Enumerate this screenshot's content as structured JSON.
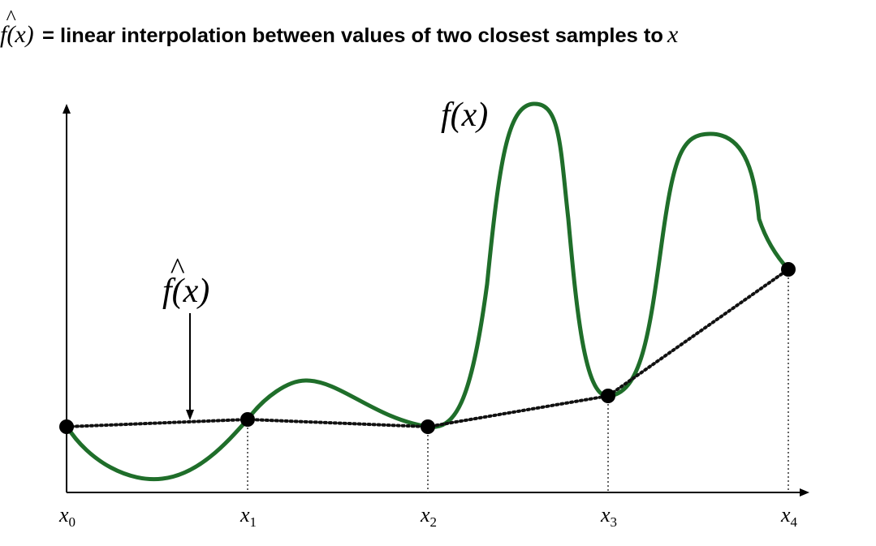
{
  "header": {
    "title_lhs": "f(x)",
    "title_hat": "^",
    "title_eq": " = linear interpolation between values of two closest samples to ",
    "title_var": "x"
  },
  "labels": {
    "fx": "f(x)",
    "fhat": "f(x)",
    "hat": "^"
  },
  "axis": {
    "ticks": [
      {
        "base": "x",
        "sub": "0"
      },
      {
        "base": "x",
        "sub": "1"
      },
      {
        "base": "x",
        "sub": "2"
      },
      {
        "base": "x",
        "sub": "3"
      },
      {
        "base": "x",
        "sub": "4"
      }
    ]
  },
  "colors": {
    "curve": "#1f6e2a",
    "interp": "#111111",
    "axis": "#000000",
    "guide": "#333333"
  }
}
